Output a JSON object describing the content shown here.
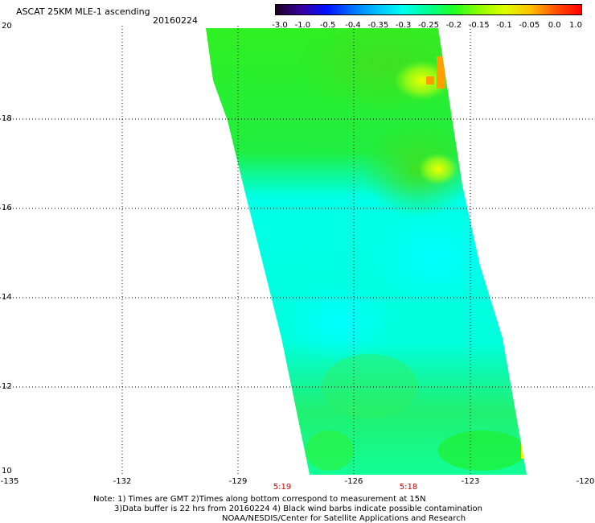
{
  "header": {
    "title": "ASCAT 25KM MLE-1 ascending",
    "date": "20160224"
  },
  "colorbar": {
    "labels": [
      "-3.0",
      "-1.0",
      "-0.5",
      "-0.4",
      "-0.35",
      "-0.3",
      "-0.25",
      "-0.2",
      "-0.15",
      "-0.1",
      "-0.05",
      "0.0",
      "1.0"
    ],
    "colors": [
      "#1a0020",
      "#3a00a0",
      "#0010ff",
      "#0070ff",
      "#00c0ff",
      "#00ffee",
      "#00ff90",
      "#20ff20",
      "#90ff00",
      "#e0ff00",
      "#ffc000",
      "#ff5000",
      "#ff0000"
    ]
  },
  "map": {
    "lat_ticks": [
      "20",
      "18",
      "16",
      "14",
      "12",
      "10"
    ],
    "lon_ticks": [
      "-135",
      "-132",
      "-129",
      "-126",
      "-123",
      "-120"
    ],
    "times": [
      "5:19",
      "5:18"
    ]
  },
  "notes": {
    "line1": "Note: 1) Times are GMT 2)Times along bottom correspond to measurement at 15N",
    "line2": "3)Data buffer is 22 hrs from 20160224 4) Black wind barbs indicate possible contamination",
    "line3": "NOAA/NESDIS/Center for Satellite Applications and Research"
  }
}
